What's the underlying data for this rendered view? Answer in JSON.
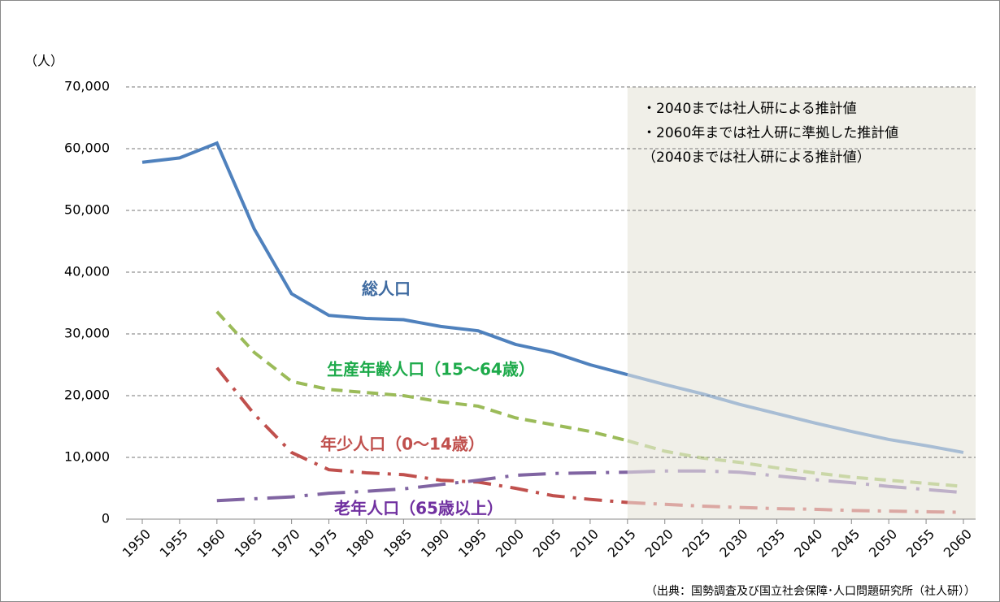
{
  "chart_data": {
    "type": "line",
    "y_unit": "（人）",
    "notes": [
      "・2040までは社人研による推計値",
      "・2060年までは社人研に準拠した推計値",
      "（2040までは社人研による推計値）"
    ],
    "source": "（出典：国勢調査及び国立社会保障･人口問題研究所（社人研））",
    "projection_start": "2015",
    "projection_fill": "#f0efe8",
    "categories": [
      "1950",
      "1955",
      "1960",
      "1965",
      "1970",
      "1975",
      "1980",
      "1985",
      "1990",
      "1995",
      "2000",
      "2005",
      "2010",
      "2015",
      "2020",
      "2025",
      "2030",
      "2035",
      "2040",
      "2045",
      "2050",
      "2055",
      "2060"
    ],
    "series": [
      {
        "name": "総人口",
        "color": "#4f81bd",
        "label_color": "#3e6aa0",
        "dash": "solid",
        "values": [
          57800,
          58500,
          60900,
          47000,
          36500,
          33000,
          32500,
          32300,
          31200,
          30500,
          28300,
          27000,
          25000,
          23400,
          21800,
          20300,
          18600,
          17100,
          15600,
          14200,
          12900,
          11900,
          10800
        ]
      },
      {
        "name": "生産年齢人口（15～64歳）",
        "color": "#9bbb59",
        "label_color": "#1daa4a",
        "dash": "dash",
        "values": [
          null,
          null,
          33600,
          27000,
          22300,
          21000,
          20500,
          20000,
          19000,
          18300,
          16400,
          15300,
          14200,
          12700,
          11000,
          9900,
          9200,
          8300,
          7500,
          6800,
          6300,
          5800,
          5300
        ]
      },
      {
        "name": "年少人口（0～14歳）",
        "color": "#c0504d",
        "label_color": "#c0504d",
        "dash": "dashdot",
        "values": [
          null,
          null,
          24500,
          17000,
          10800,
          8000,
          7500,
          7200,
          6300,
          6000,
          5000,
          3800,
          3200,
          2700,
          2400,
          2100,
          1900,
          1700,
          1600,
          1400,
          1300,
          1200,
          1100
        ]
      },
      {
        "name": "老年人口（65歳以上）",
        "color": "#8064a2",
        "label_color": "#7030a0",
        "dash": "longdashdot",
        "values": [
          null,
          null,
          3000,
          3300,
          3600,
          4200,
          4500,
          4900,
          5600,
          6300,
          7100,
          7400,
          7500,
          7600,
          7800,
          7800,
          7600,
          7000,
          6400,
          5900,
          5300,
          4800,
          4300
        ]
      }
    ],
    "ylim": [
      0,
      70000
    ],
    "yticks": [
      0,
      {
        "value": 10000,
        "label": "10,000"
      },
      {
        "value": 20000,
        "label": "20,000"
      },
      {
        "value": 30000,
        "label": "30,000"
      },
      {
        "value": 40000,
        "label": "40,000"
      },
      {
        "value": 50000,
        "label": "50,000"
      },
      {
        "value": 60000,
        "label": "60,000"
      },
      {
        "value": 70000,
        "label": "70,000"
      }
    ],
    "grid": true
  }
}
